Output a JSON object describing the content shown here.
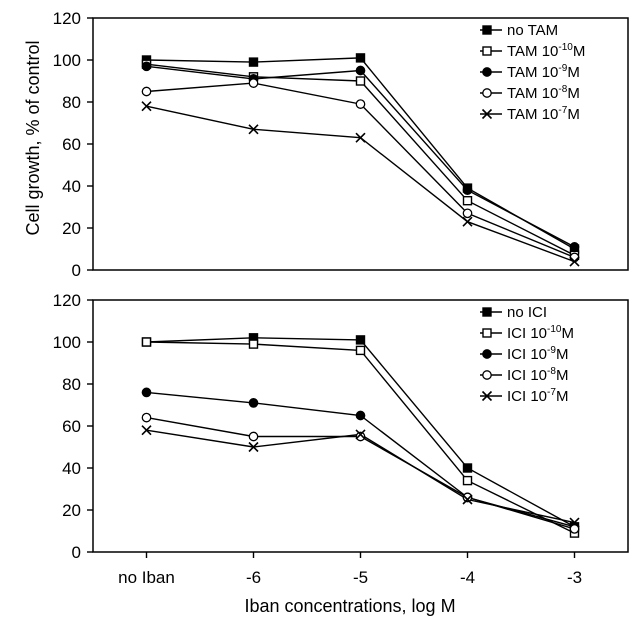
{
  "chart_data": [
    {
      "type": "line",
      "panel": "top",
      "title": "",
      "xlabel": "",
      "ylabel": "Cell growth, % of control",
      "categories": [
        "no Iban",
        "-6",
        "-5",
        "-4",
        "-3"
      ],
      "ylim": [
        0,
        120
      ],
      "yticks": [
        "0",
        "20",
        "40",
        "60",
        "80",
        "100",
        "120"
      ],
      "legend_position": "top-right",
      "grid": false,
      "series": [
        {
          "name": "no TAM",
          "label_base": "no TAM",
          "label_exp": "",
          "label_unit": "",
          "marker": "filled-square",
          "values": [
            100,
            99,
            101,
            39,
            10
          ]
        },
        {
          "name": "TAM 10-10M",
          "label_base": "TAM 10",
          "label_exp": "-10",
          "label_unit": "M",
          "marker": "open-square",
          "values": [
            98,
            92,
            90,
            33,
            7
          ]
        },
        {
          "name": "TAM 10-9M",
          "label_base": "TAM 10",
          "label_exp": "-9",
          "label_unit": "M",
          "marker": "filled-circle",
          "values": [
            97,
            91,
            95,
            38,
            11
          ]
        },
        {
          "name": "TAM 10-8M",
          "label_base": "TAM 10",
          "label_exp": "-8",
          "label_unit": "M",
          "marker": "open-circle",
          "values": [
            85,
            89,
            79,
            27,
            6
          ]
        },
        {
          "name": "TAM 10-7M",
          "label_base": "TAM 10",
          "label_exp": "-7",
          "label_unit": "M",
          "marker": "cross",
          "values": [
            78,
            67,
            63,
            23,
            4
          ]
        }
      ]
    },
    {
      "type": "line",
      "panel": "bottom",
      "title": "",
      "xlabel": "Iban concentrations, log M",
      "ylabel": "",
      "categories": [
        "no Iban",
        "-6",
        "-5",
        "-4",
        "-3"
      ],
      "ylim": [
        0,
        120
      ],
      "yticks": [
        "0",
        "20",
        "40",
        "60",
        "80",
        "100",
        "120"
      ],
      "legend_position": "top-right",
      "grid": false,
      "series": [
        {
          "name": "no ICI",
          "label_base": "no ICI",
          "label_exp": "",
          "label_unit": "",
          "marker": "filled-square",
          "values": [
            100,
            102,
            101,
            40,
            12
          ]
        },
        {
          "name": "ICI 10-10M",
          "label_base": "ICI 10",
          "label_exp": "-10",
          "label_unit": "M",
          "marker": "open-square",
          "values": [
            100,
            99,
            96,
            34,
            9
          ]
        },
        {
          "name": "ICI 10-9M",
          "label_base": "ICI 10",
          "label_exp": "-9",
          "label_unit": "M",
          "marker": "filled-circle",
          "values": [
            76,
            71,
            65,
            26,
            12
          ]
        },
        {
          "name": "ICI 10-8M",
          "label_base": "ICI 10",
          "label_exp": "-8",
          "label_unit": "M",
          "marker": "open-circle",
          "values": [
            64,
            55,
            55,
            26,
            11
          ]
        },
        {
          "name": "ICI 10-7M",
          "label_base": "ICI 10",
          "label_exp": "-7",
          "label_unit": "M",
          "marker": "cross",
          "values": [
            58,
            50,
            56,
            25,
            14
          ]
        }
      ]
    }
  ],
  "colors": {
    "line": "#000000",
    "background": "#ffffff"
  }
}
